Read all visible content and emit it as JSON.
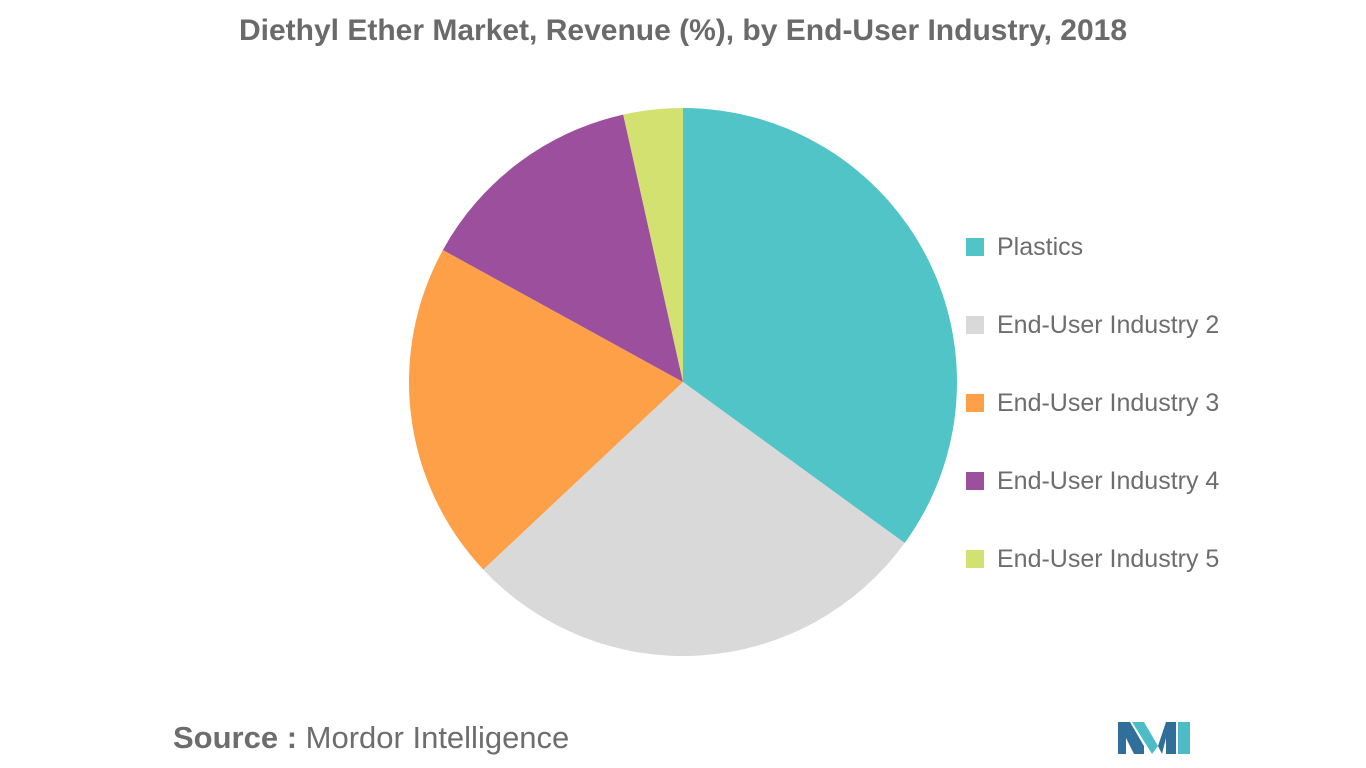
{
  "chart_data": {
    "type": "pie",
    "title": "Diethyl Ether Market, Revenue (%), by End-User Industry, 2018",
    "slices": [
      {
        "label": "Plastics",
        "value": 35,
        "color": "#51c4c8"
      },
      {
        "label": "End-User Industry 2",
        "value": 28,
        "color": "#d9d9d9"
      },
      {
        "label": "End-User Industry 3",
        "value": 20,
        "color": "#fea047"
      },
      {
        "label": "End-User Industry 4",
        "value": 13.5,
        "color": "#9b4f9c"
      },
      {
        "label": "End-User Industry 5",
        "value": 3.5,
        "color": "#d2e170"
      }
    ],
    "legend_position": "right"
  },
  "source": {
    "prefix": "Source :",
    "text": "Mordor Intelligence"
  },
  "logo": {
    "icon": "mordor-intelligence-logo-icon",
    "colors": [
      "#2f6f9a",
      "#4cbcc7"
    ]
  }
}
